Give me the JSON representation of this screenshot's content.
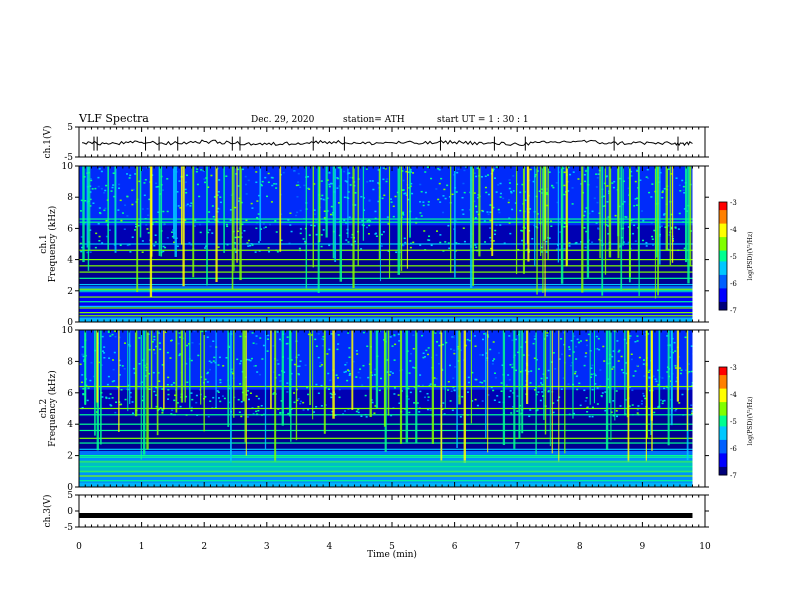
{
  "header": {
    "title": "VLF Spectra",
    "date": "Dec. 29, 2020",
    "station": "station= ATH",
    "start": "start  UT  =   1 : 30 : 1"
  },
  "chart_data": [
    {
      "type": "line",
      "ylabel": "ch.1(V)",
      "xlim": [
        0,
        10
      ],
      "ylim": [
        -5,
        5
      ],
      "yticks": [
        "5",
        "-5"
      ],
      "x": [
        0.05,
        0.5,
        1.0,
        1.5,
        2.0,
        2.5,
        3.0,
        3.5,
        4.0,
        4.5,
        5.0,
        5.5,
        6.0,
        6.5,
        7.0,
        7.5,
        8.0,
        8.5,
        9.0,
        9.5,
        9.8
      ],
      "y": [
        -0.2,
        -0.6,
        -0.1,
        -0.5,
        0.2,
        -0.4,
        -0.8,
        -0.3,
        0.1,
        -0.5,
        -0.2,
        -0.4,
        0.0,
        -0.5,
        -0.7,
        -0.2,
        0.3,
        -0.4,
        -0.3,
        -0.6,
        -0.5
      ]
    },
    {
      "type": "heatmap",
      "ylabel": "ch.1  Frequency (kHz)",
      "xlim": [
        0,
        10
      ],
      "ylim": [
        0,
        10
      ],
      "yticks": [
        "0",
        "2",
        "4",
        "6",
        "8",
        "10"
      ],
      "data_extent_x": [
        0,
        9.8
      ],
      "colorbar": {
        "label": "log(PSD)(V²/Hz)",
        "range": [
          -7,
          -3
        ],
        "ticks": [
          "-3",
          "-4",
          "-5",
          "-6",
          "-7"
        ]
      },
      "line_frequencies": [
        0.4,
        0.6,
        0.9,
        1.0,
        1.3,
        1.6,
        2.0,
        2.1,
        2.4,
        2.8,
        3.2,
        3.6,
        4.0,
        4.6,
        5.0,
        6.4,
        6.6
      ]
    },
    {
      "type": "heatmap",
      "ylabel": "ch.2  Frequency (kHz)",
      "xlim": [
        0,
        10
      ],
      "ylim": [
        0,
        10
      ],
      "yticks": [
        "0",
        "2",
        "4",
        "6",
        "8",
        "10"
      ],
      "data_extent_x": [
        0,
        9.8
      ],
      "colorbar": {
        "label": "log(PSD)(V²/Hz)",
        "range": [
          -7,
          -3
        ],
        "ticks": [
          "-3",
          "-4",
          "-5",
          "-6",
          "-7"
        ]
      },
      "line_frequencies": [
        0.4,
        0.7,
        1.0,
        1.3,
        1.6,
        1.9,
        2.0,
        2.4,
        2.8,
        3.1,
        3.6,
        4.0,
        4.6,
        5.0,
        6.4
      ]
    },
    {
      "type": "line",
      "ylabel": "ch.3(V)",
      "xlabel": "Time  (min)",
      "xlim": [
        0,
        10
      ],
      "ylim": [
        -5,
        5
      ],
      "yticks": [
        "5",
        "0",
        "-5"
      ],
      "xticks": [
        "0",
        "1",
        "2",
        "3",
        "4",
        "5",
        "6",
        "7",
        "8",
        "9",
        "10"
      ],
      "x": [
        0,
        9.8
      ],
      "y": [
        -1.4,
        -1.4
      ]
    }
  ],
  "colors": {
    "axis": "#000000",
    "trace": "#000000"
  },
  "colormap": [
    "#00007a",
    "#0000ff",
    "#0060ff",
    "#00c8ff",
    "#00ff90",
    "#80ff00",
    "#ffff00",
    "#ff8000",
    "#ff0000",
    "#ffffff"
  ]
}
